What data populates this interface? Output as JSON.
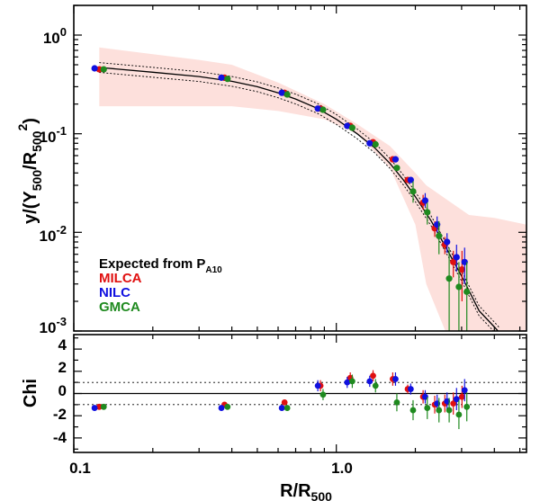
{
  "chart_data": [
    {
      "type": "scatter",
      "panel": "top",
      "xscale": "log",
      "yscale": "log",
      "xlim": [
        0.1,
        5.3
      ],
      "ylim": [
        0.001,
        2.0
      ],
      "ylabel": {
        "main": "y/(Y",
        "sub1": "500",
        "mid": "/R",
        "sub2": "500",
        "sup": "2",
        "close": ")"
      },
      "yticks": [
        {
          "v": 1,
          "base": "10",
          "exp": "0"
        },
        {
          "v": 0.1,
          "base": "10",
          "exp": "-1"
        },
        {
          "v": 0.01,
          "base": "10",
          "exp": "-2"
        },
        {
          "v": 0.001,
          "base": "10",
          "exp": "-3"
        }
      ],
      "legend": {
        "placement": "lower-left",
        "model_label": "Expected from P",
        "model_sub": "A10",
        "entries": [
          {
            "name": "MILCA",
            "color": "#e01010"
          },
          {
            "name": "NILC",
            "color": "#1010e0"
          },
          {
            "name": "GMCA",
            "color": "#1f8a1f"
          }
        ]
      },
      "band": {
        "color": "#fde0dc",
        "x": [
          0.125,
          0.2,
          0.3,
          0.4,
          0.6,
          0.9,
          1.2,
          1.6,
          2.0,
          2.2,
          2.6,
          3.2,
          4.0,
          5.3
        ],
        "upper": [
          0.75,
          0.64,
          0.56,
          0.5,
          0.33,
          0.2,
          0.125,
          0.075,
          0.04,
          0.03,
          0.022,
          0.015,
          0.014,
          0.012
        ],
        "lower": [
          0.19,
          0.19,
          0.19,
          0.19,
          0.17,
          0.14,
          0.1,
          0.045,
          0.012,
          0.003,
          0.001,
          0.001,
          0.001,
          0.001
        ]
      },
      "model": {
        "x": [
          0.125,
          0.2,
          0.3,
          0.4,
          0.5,
          0.6,
          0.7,
          0.85,
          1.0,
          1.2,
          1.4,
          1.6,
          1.8,
          2.0,
          2.3,
          2.6,
          3.0,
          3.5,
          4.0,
          4.2
        ],
        "y": [
          0.47,
          0.42,
          0.38,
          0.34,
          0.3,
          0.26,
          0.225,
          0.18,
          0.14,
          0.1,
          0.072,
          0.05,
          0.034,
          0.023,
          0.013,
          0.0072,
          0.0036,
          0.0016,
          0.0011,
          0.00095
        ],
        "upper_factor": 1.12,
        "lower_factor": 0.89
      },
      "series": [
        {
          "name": "MILCA",
          "color": "#e01010",
          "points": [
            {
              "x": 0.125,
              "y": 0.45
            },
            {
              "x": 0.375,
              "y": 0.37
            },
            {
              "x": 0.635,
              "y": 0.26
            },
            {
              "x": 0.87,
              "y": 0.18
            },
            {
              "x": 1.13,
              "y": 0.12
            },
            {
              "x": 1.38,
              "y": 0.082
            },
            {
              "x": 1.64,
              "y": 0.055
            },
            {
              "x": 1.87,
              "y": 0.034
            },
            {
              "x": 2.14,
              "y": 0.02,
              "lo": 0.017,
              "hi": 0.024
            },
            {
              "x": 2.37,
              "y": 0.011,
              "lo": 0.009,
              "hi": 0.013
            },
            {
              "x": 2.59,
              "y": 0.0075,
              "lo": 0.006,
              "hi": 0.009
            },
            {
              "x": 2.79,
              "y": 0.005,
              "lo": 0.0035,
              "hi": 0.0065
            },
            {
              "x": 3.01,
              "y": 0.0042,
              "lo": 0.002,
              "hi": 0.0065
            }
          ]
        },
        {
          "name": "NILC",
          "color": "#1010e0",
          "points": [
            {
              "x": 0.12,
              "y": 0.46
            },
            {
              "x": 0.365,
              "y": 0.37
            },
            {
              "x": 0.62,
              "y": 0.26
            },
            {
              "x": 0.85,
              "y": 0.18
            },
            {
              "x": 1.1,
              "y": 0.12
            },
            {
              "x": 1.34,
              "y": 0.08
            },
            {
              "x": 1.68,
              "y": 0.055
            },
            {
              "x": 1.92,
              "y": 0.034
            },
            {
              "x": 2.18,
              "y": 0.021,
              "lo": 0.018,
              "hi": 0.025
            },
            {
              "x": 2.42,
              "y": 0.012,
              "lo": 0.01,
              "hi": 0.0145
            },
            {
              "x": 2.64,
              "y": 0.008,
              "lo": 0.0062,
              "hi": 0.0098
            },
            {
              "x": 2.87,
              "y": 0.0056,
              "lo": 0.004,
              "hi": 0.0075
            },
            {
              "x": 3.08,
              "y": 0.005,
              "lo": 0.003,
              "hi": 0.007
            }
          ]
        },
        {
          "name": "GMCA",
          "color": "#1f8a1f",
          "points": [
            {
              "x": 0.13,
              "y": 0.45
            },
            {
              "x": 0.385,
              "y": 0.36
            },
            {
              "x": 0.65,
              "y": 0.25
            },
            {
              "x": 0.89,
              "y": 0.175
            },
            {
              "x": 1.15,
              "y": 0.115
            },
            {
              "x": 1.41,
              "y": 0.078
            },
            {
              "x": 1.7,
              "y": 0.045
            },
            {
              "x": 1.96,
              "y": 0.026,
              "lo": 0.02,
              "hi": 0.033
            },
            {
              "x": 2.22,
              "y": 0.016,
              "lo": 0.012,
              "hi": 0.02
            },
            {
              "x": 2.46,
              "y": 0.0092,
              "lo": 0.006,
              "hi": 0.013
            },
            {
              "x": 2.69,
              "y": 0.0034,
              "lo": 0.001,
              "hi": 0.007
            },
            {
              "x": 2.93,
              "y": 0.0028,
              "lo": 0.001,
              "hi": 0.005
            },
            {
              "x": 3.14,
              "y": 0.0025,
              "lo": 0.001,
              "hi": 0.005
            }
          ]
        }
      ]
    },
    {
      "type": "scatter",
      "panel": "bottom",
      "xscale": "log",
      "xlim": [
        0.1,
        5.3
      ],
      "ylim": [
        -5.3,
        5.3
      ],
      "ylabel": "Chi",
      "xlabel": {
        "main": "R/R",
        "sub": "500"
      },
      "yticks": [
        4,
        2,
        0,
        -2,
        -4
      ],
      "xticks": [
        {
          "v": 0.1,
          "label": "0.1"
        },
        {
          "v": 1.0,
          "label": "1.0"
        }
      ],
      "reference_lines": [
        {
          "y": 0,
          "style": "solid"
        },
        {
          "y": 1,
          "style": "dotted"
        },
        {
          "y": -1,
          "style": "dotted"
        }
      ],
      "series": [
        {
          "name": "MILCA",
          "color": "#e01010",
          "points": [
            {
              "x": 0.125,
              "y": -1.2
            },
            {
              "x": 0.375,
              "y": -1.0
            },
            {
              "x": 0.635,
              "y": -0.8
            },
            {
              "x": 0.87,
              "y": 0.7,
              "e": 0.5
            },
            {
              "x": 1.13,
              "y": 1.4,
              "e": 0.5
            },
            {
              "x": 1.38,
              "y": 1.6,
              "e": 0.5
            },
            {
              "x": 1.64,
              "y": 1.3,
              "e": 0.6
            },
            {
              "x": 1.87,
              "y": 0.4,
              "e": 0.4
            },
            {
              "x": 2.14,
              "y": -0.3,
              "e": 0.6
            },
            {
              "x": 2.37,
              "y": -1.0,
              "e": 0.8
            },
            {
              "x": 2.59,
              "y": -0.9,
              "e": 0.8
            },
            {
              "x": 2.79,
              "y": -0.9,
              "e": 1.0
            },
            {
              "x": 3.01,
              "y": -0.3,
              "e": 1.0
            }
          ]
        },
        {
          "name": "NILC",
          "color": "#1010e0",
          "points": [
            {
              "x": 0.12,
              "y": -1.3
            },
            {
              "x": 0.365,
              "y": -1.3
            },
            {
              "x": 0.62,
              "y": -1.3
            },
            {
              "x": 0.85,
              "y": 0.7,
              "e": 0.5
            },
            {
              "x": 1.1,
              "y": 1.0,
              "e": 0.5
            },
            {
              "x": 1.34,
              "y": 1.1,
              "e": 0.5
            },
            {
              "x": 1.68,
              "y": 1.3,
              "e": 0.6
            },
            {
              "x": 1.92,
              "y": 0.4,
              "e": 0.5
            },
            {
              "x": 2.18,
              "y": -0.3,
              "e": 0.6
            },
            {
              "x": 2.42,
              "y": -0.9,
              "e": 0.8
            },
            {
              "x": 2.64,
              "y": -0.7,
              "e": 0.8
            },
            {
              "x": 2.87,
              "y": -0.5,
              "e": 1.0
            },
            {
              "x": 3.08,
              "y": 0.3,
              "e": 1.0
            }
          ]
        },
        {
          "name": "GMCA",
          "color": "#1f8a1f",
          "points": [
            {
              "x": 0.13,
              "y": -1.2
            },
            {
              "x": 0.385,
              "y": -1.2
            },
            {
              "x": 0.65,
              "y": -1.3
            },
            {
              "x": 0.89,
              "y": -0.1,
              "e": 0.5
            },
            {
              "x": 1.15,
              "y": 1.1,
              "e": 0.6
            },
            {
              "x": 1.41,
              "y": 0.7,
              "e": 0.6
            },
            {
              "x": 1.7,
              "y": -0.8,
              "e": 0.8
            },
            {
              "x": 1.96,
              "y": -1.5,
              "e": 0.9
            },
            {
              "x": 2.22,
              "y": -1.3,
              "e": 1.0
            },
            {
              "x": 2.46,
              "y": -1.5,
              "e": 1.1
            },
            {
              "x": 2.69,
              "y": -1.5,
              "e": 1.1
            },
            {
              "x": 2.93,
              "y": -1.9,
              "e": 1.3
            },
            {
              "x": 3.14,
              "y": -1.2,
              "e": 1.3
            }
          ]
        }
      ]
    }
  ]
}
